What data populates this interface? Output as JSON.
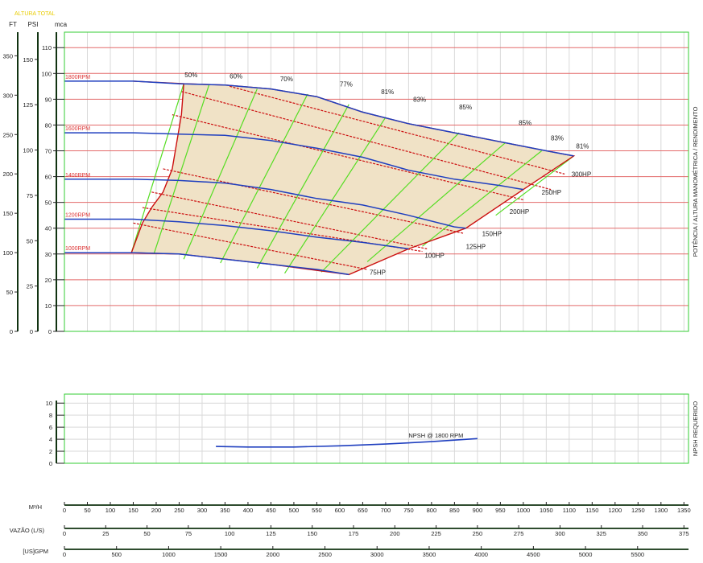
{
  "chart_data": [
    {
      "type": "line",
      "title": "ALTURA TOTAL",
      "left_axes": [
        {
          "name": "FT",
          "range": [
            0,
            380
          ],
          "ticks": [
            0,
            50,
            100,
            150,
            200,
            250,
            300,
            350
          ]
        },
        {
          "name": "PSI",
          "range": [
            0,
            165
          ],
          "ticks": [
            0,
            25,
            50,
            75,
            100,
            125,
            150
          ]
        },
        {
          "name": "mca",
          "range": [
            0,
            116
          ],
          "ticks": [
            0,
            10,
            20,
            30,
            40,
            50,
            60,
            70,
            80,
            90,
            100,
            110
          ]
        }
      ],
      "ylabel_right": "POTÊNCIA / ALTURA MANOMÉTRICA / RENDIMENTO",
      "x_axis": "M3/H",
      "xlim": [
        0,
        1360
      ],
      "ylim": [
        0,
        116
      ],
      "grid": true,
      "speed_curves": [
        {
          "name": "1800RPM",
          "points": [
            [
              0,
              97
            ],
            [
              150,
              97
            ],
            [
              250,
              96
            ],
            [
              350,
              95.5
            ],
            [
              450,
              94
            ],
            [
              550,
              91
            ],
            [
              650,
              85
            ],
            [
              750,
              80.5
            ],
            [
              850,
              77
            ],
            [
              950,
              73.5
            ],
            [
              1050,
              70
            ],
            [
              1110,
              68
            ]
          ]
        },
        {
          "name": "1600RPM",
          "points": [
            [
              0,
              77
            ],
            [
              150,
              77
            ],
            [
              250,
              76.5
            ],
            [
              350,
              76
            ],
            [
              450,
              74
            ],
            [
              550,
              71
            ],
            [
              650,
              67.5
            ],
            [
              750,
              62.5
            ],
            [
              850,
              59
            ],
            [
              950,
              56.5
            ],
            [
              1000,
              55
            ]
          ]
        },
        {
          "name": "1400RPM",
          "points": [
            [
              0,
              59
            ],
            [
              150,
              59
            ],
            [
              250,
              58.5
            ],
            [
              350,
              57.5
            ],
            [
              450,
              55
            ],
            [
              550,
              51.5
            ],
            [
              650,
              49
            ],
            [
              750,
              45
            ],
            [
              850,
              40.5
            ],
            [
              875,
              40
            ]
          ]
        },
        {
          "name": "1200RPM",
          "points": [
            [
              0,
              43.5
            ],
            [
              150,
              43.5
            ],
            [
              250,
              42.5
            ],
            [
              350,
              41
            ],
            [
              450,
              39
            ],
            [
              550,
              36.5
            ],
            [
              650,
              34.5
            ],
            [
              750,
              32
            ]
          ]
        },
        {
          "name": "1000RPM",
          "points": [
            [
              0,
              30.5
            ],
            [
              150,
              30.5
            ],
            [
              250,
              30
            ],
            [
              350,
              28
            ],
            [
              450,
              26
            ],
            [
              550,
              24
            ],
            [
              620,
              22
            ]
          ]
        }
      ],
      "efficiency_lines": [
        {
          "label": "50%",
          "points": [
            [
              260,
              96
            ],
            [
              146,
              30.5
            ]
          ]
        },
        {
          "label": "60%",
          "points": [
            [
              315,
              95.5
            ],
            [
              195,
              30
            ]
          ]
        },
        {
          "label": "70%",
          "points": [
            [
              420,
              94
            ],
            [
              260,
              28
            ]
          ]
        },
        {
          "label": "77%",
          "points": [
            [
              530,
              92
            ],
            [
              340,
              26.5
            ]
          ]
        },
        {
          "label": "81%",
          "points": [
            [
              620,
              88
            ],
            [
              420,
              24.5
            ]
          ]
        },
        {
          "label": "83%",
          "points": [
            [
              700,
              83
            ],
            [
              480,
              22.5
            ]
          ]
        },
        {
          "label": "85%",
          "points": [
            [
              860,
              77
            ],
            [
              560,
              23
            ]
          ]
        },
        {
          "label": "85%",
          "points": [
            [
              960,
              73
            ],
            [
              660,
              27
            ]
          ]
        },
        {
          "label": "83%",
          "points": [
            [
              1040,
              70
            ],
            [
              780,
              33
            ]
          ]
        },
        {
          "label": "81%",
          "points": [
            [
              1110,
              68
            ],
            [
              940,
              45
            ]
          ]
        }
      ],
      "efficiency_labels": [
        {
          "text": "50%",
          "x": 262,
          "y": 98.5
        },
        {
          "text": "60%",
          "x": 360,
          "y": 98
        },
        {
          "text": "70%",
          "x": 470,
          "y": 97
        },
        {
          "text": "77%",
          "x": 600,
          "y": 95
        },
        {
          "text": "81%",
          "x": 690,
          "y": 92
        },
        {
          "text": "83%",
          "x": 760,
          "y": 89
        },
        {
          "text": "85%",
          "x": 860,
          "y": 86
        },
        {
          "text": "85%",
          "x": 990,
          "y": 80
        },
        {
          "text": "83%",
          "x": 1060,
          "y": 74
        },
        {
          "text": "81%",
          "x": 1115,
          "y": 71
        }
      ],
      "power_lines": [
        {
          "label": "75HP",
          "points": [
            [
              150,
              42
            ],
            [
              660,
              24
            ]
          ],
          "lx": 665,
          "ly": 22
        },
        {
          "label": "100HP",
          "points": [
            [
              170,
              48
            ],
            [
              780,
              31
            ]
          ],
          "lx": 785,
          "ly": 28.5
        },
        {
          "label": "125HP",
          "points": [
            [
              190,
              54
            ],
            [
              790,
              32
            ]
          ],
          "lx": 875,
          "ly": 32
        },
        {
          "label": "150HP",
          "points": [
            [
              215,
              63
            ],
            [
              870,
              38
            ]
          ],
          "lx": 910,
          "ly": 37
        },
        {
          "label": "200HP",
          "points": [
            [
              235,
              84
            ],
            [
              1000,
              51
            ]
          ],
          "lx": 970,
          "ly": 45.5
        },
        {
          "label": "250HP",
          "points": [
            [
              255,
              93
            ],
            [
              1060,
              55
            ]
          ],
          "lx": 1040,
          "ly": 53
        },
        {
          "label": "300HP",
          "points": [
            [
              360,
              95
            ],
            [
              1090,
              61
            ]
          ],
          "lx": 1105,
          "ly": 60
        }
      ],
      "envelope": [
        [
          150,
          97
        ],
        [
          260,
          96
        ],
        [
          350,
          95.5
        ],
        [
          450,
          94
        ],
        [
          550,
          91
        ],
        [
          650,
          85
        ],
        [
          750,
          80.5
        ],
        [
          850,
          77
        ],
        [
          950,
          73.5
        ],
        [
          1050,
          70
        ],
        [
          1110,
          68
        ],
        [
          1000,
          55
        ],
        [
          875,
          40
        ],
        [
          750,
          32
        ],
        [
          620,
          22
        ],
        [
          450,
          26
        ],
        [
          350,
          28
        ],
        [
          250,
          30
        ],
        [
          146,
          30.5
        ],
        [
          170,
          42
        ],
        [
          190,
          48
        ],
        [
          215,
          54
        ],
        [
          235,
          63
        ],
        [
          255,
          84
        ],
        [
          260,
          96
        ]
      ]
    },
    {
      "type": "line",
      "ylabel_right": "NPSH REQUERIDO",
      "yticks": [
        0,
        2,
        4,
        6,
        8,
        10
      ],
      "ylim": [
        0,
        11.5
      ],
      "series": [
        {
          "name": "NPSH @ 1800 RPM",
          "x": [
            330,
            400,
            500,
            600,
            700,
            800,
            900
          ],
          "y": [
            2.8,
            2.7,
            2.7,
            2.9,
            3.2,
            3.6,
            4.1
          ]
        }
      ]
    }
  ],
  "x_scales": [
    {
      "label": "M³/H",
      "ticks": [
        0,
        50,
        100,
        150,
        200,
        250,
        300,
        350,
        400,
        450,
        500,
        550,
        600,
        650,
        700,
        750,
        800,
        850,
        900,
        950,
        1000,
        1050,
        1100,
        1150,
        1200,
        1250,
        1300,
        1350
      ]
    },
    {
      "label": "VAZÃO (L/S)",
      "ticks": [
        0,
        25,
        50,
        75,
        100,
        125,
        150,
        175,
        200,
        225,
        250,
        275,
        300,
        325,
        350,
        375
      ]
    },
    {
      "label": "[US]GPM",
      "ticks": [
        0,
        500,
        1000,
        1500,
        2000,
        2500,
        3000,
        3500,
        4000,
        4500,
        5000,
        5500
      ]
    }
  ],
  "colors": {
    "frame": "#33cc33",
    "grid_h": "#e36a6a",
    "grid_v": "#d9d9d9",
    "curve": "#1f3fbf",
    "efficiency": "#55dd22",
    "power": "#cc1010",
    "envelope_fill": "#f0e2c6",
    "rpm_label": "#dd3333",
    "title": "#e8cc00"
  }
}
